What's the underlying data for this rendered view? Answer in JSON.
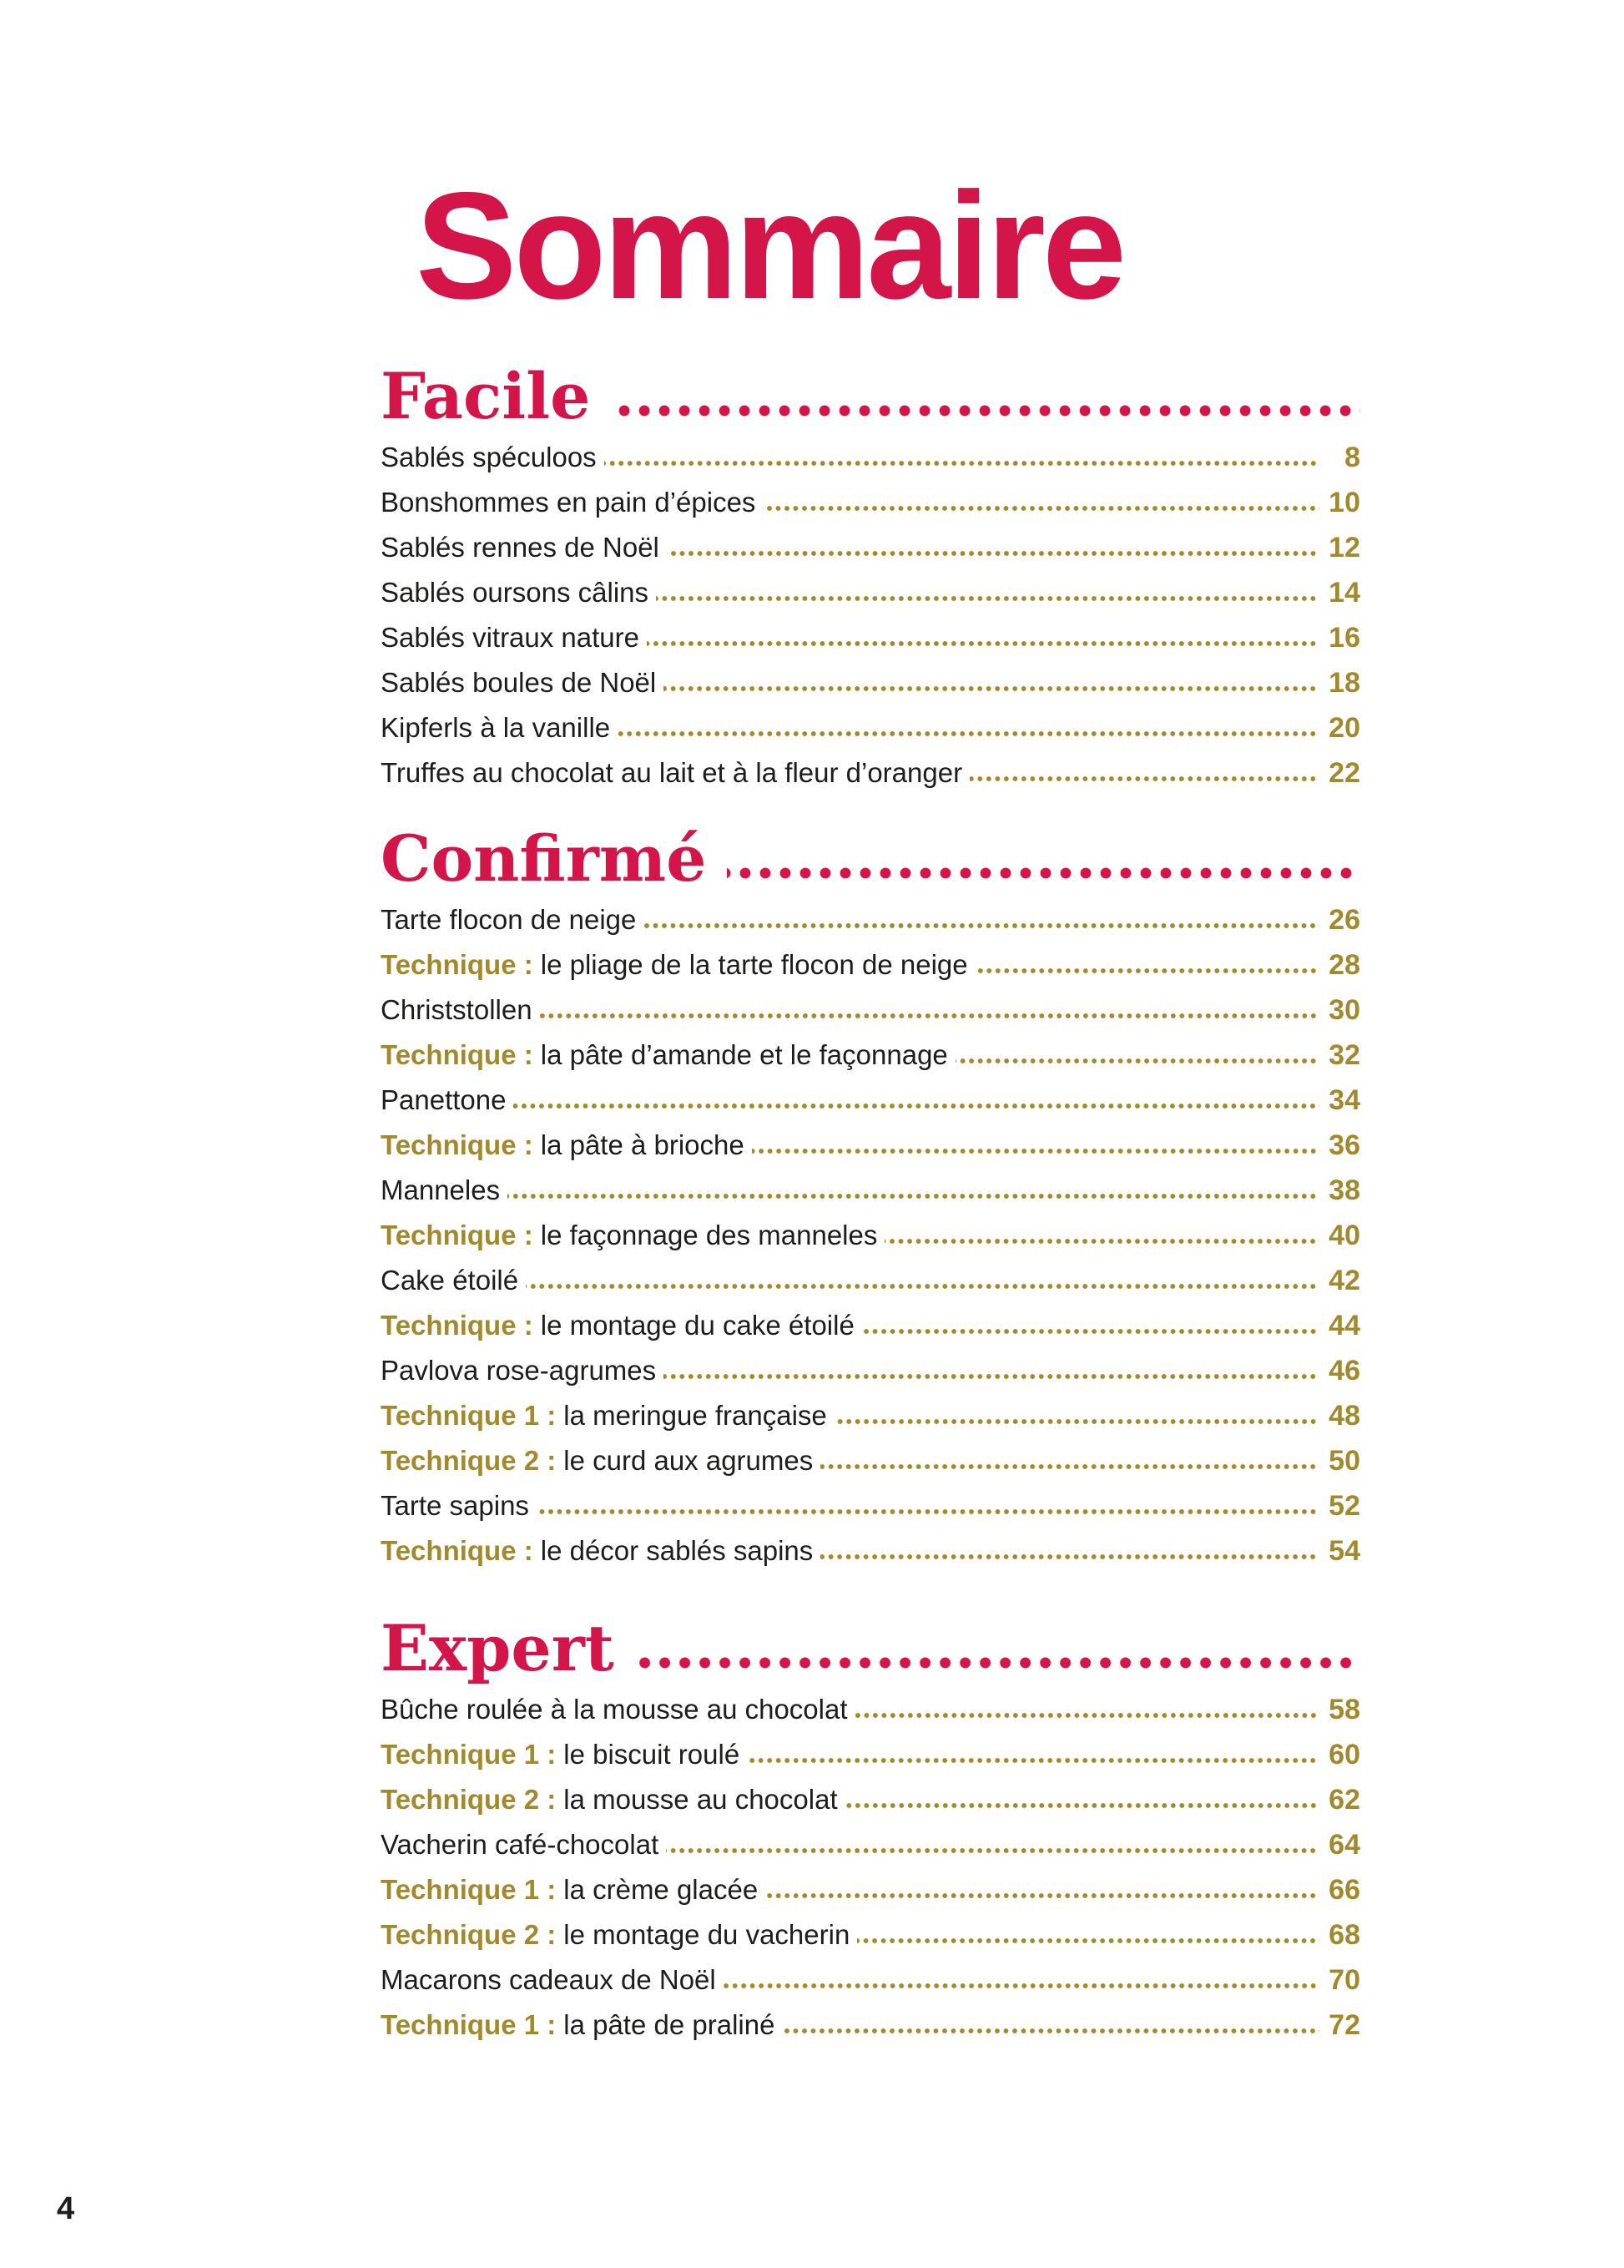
{
  "page": {
    "title": "Sommaire",
    "folio": "4"
  },
  "colors": {
    "red": "#d41549",
    "gold": "#a28a2c",
    "ink": "#1d1d1b",
    "paper": "#ffffff"
  },
  "sections": [
    {
      "id": "facile",
      "heading": "Facile",
      "entries": [
        {
          "prefix": "",
          "label": "Sablés spéculoos",
          "page": "8"
        },
        {
          "prefix": "",
          "label": "Bonshommes en pain d’épices",
          "page": "10"
        },
        {
          "prefix": "",
          "label": "Sablés rennes de Noël",
          "page": "12"
        },
        {
          "prefix": "",
          "label": "Sablés oursons câlins",
          "page": "14"
        },
        {
          "prefix": "",
          "label": "Sablés vitraux nature",
          "page": "16"
        },
        {
          "prefix": "",
          "label": "Sablés boules de Noël",
          "page": "18"
        },
        {
          "prefix": "",
          "label": "Kipferls à la vanille",
          "page": "20"
        },
        {
          "prefix": "",
          "label": "Truffes au chocolat au lait et à la fleur d’oranger",
          "page": "22"
        }
      ]
    },
    {
      "id": "confirme",
      "heading": "Confirmé",
      "entries": [
        {
          "prefix": "",
          "label": "Tarte flocon de neige",
          "page": "26"
        },
        {
          "prefix": "Technique :",
          "label": "le pliage de la tarte flocon de neige",
          "page": "28"
        },
        {
          "prefix": "",
          "label": "Christstollen",
          "page": "30"
        },
        {
          "prefix": "Technique :",
          "label": "la pâte d’amande et le façonnage",
          "page": "32"
        },
        {
          "prefix": "",
          "label": "Panettone",
          "page": "34"
        },
        {
          "prefix": "Technique :",
          "label": "la pâte à brioche",
          "page": "36"
        },
        {
          "prefix": "",
          "label": "Manneles",
          "page": "38"
        },
        {
          "prefix": "Technique :",
          "label": "le façonnage des manneles",
          "page": "40"
        },
        {
          "prefix": "",
          "label": "Cake étoilé",
          "page": "42"
        },
        {
          "prefix": "Technique :",
          "label": "le montage du cake étoilé",
          "page": "44"
        },
        {
          "prefix": "",
          "label": "Pavlova rose-agrumes",
          "page": "46"
        },
        {
          "prefix": "Technique 1 :",
          "label": "la meringue française",
          "page": "48"
        },
        {
          "prefix": "Technique 2 :",
          "label": "le curd aux agrumes",
          "page": "50"
        },
        {
          "prefix": "",
          "label": "Tarte sapins",
          "page": "52"
        },
        {
          "prefix": "Technique :",
          "label": "le décor sablés sapins",
          "page": "54"
        }
      ]
    },
    {
      "id": "expert",
      "heading": "Expert",
      "entries": [
        {
          "prefix": "",
          "label": "Bûche roulée à la mousse au chocolat",
          "page": "58"
        },
        {
          "prefix": "Technique 1 :",
          "label": "le biscuit roulé",
          "page": "60"
        },
        {
          "prefix": "Technique 2 :",
          "label": "la mousse au chocolat",
          "page": "62"
        },
        {
          "prefix": "",
          "label": "Vacherin café-chocolat",
          "page": "64"
        },
        {
          "prefix": "Technique 1 :",
          "label": "la crème glacée",
          "page": "66"
        },
        {
          "prefix": "Technique 2 :",
          "label": "le montage du vacherin",
          "page": "68"
        },
        {
          "prefix": "",
          "label": "Macarons cadeaux de Noël",
          "page": "70"
        },
        {
          "prefix": "Technique 1 :",
          "label": "la pâte de praliné",
          "page": "72"
        }
      ]
    }
  ]
}
